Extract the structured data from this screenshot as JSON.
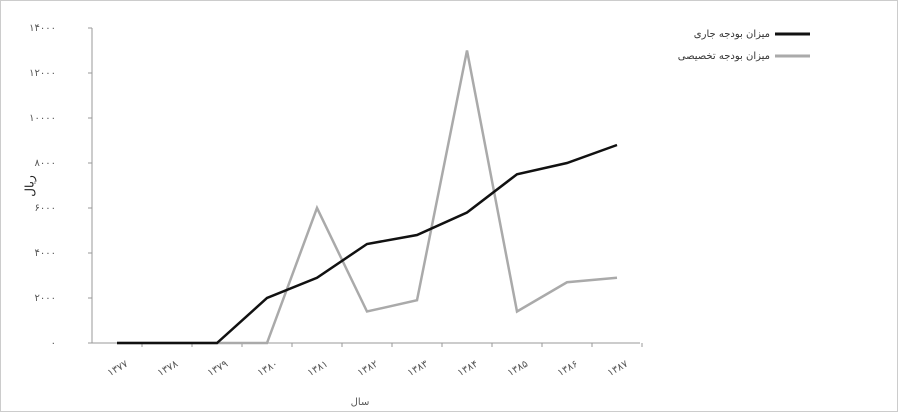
{
  "chart_data": {
    "type": "line",
    "y_label": "ریال",
    "x_label": "سال",
    "categories": [
      "۱۳۷۷",
      "۱۳۷۸",
      "۱۳۷۹",
      "۱۳۸۰",
      "۱۳۸۱",
      "۱۳۸۲",
      "۱۳۸۳",
      "۱۳۸۴",
      "۱۳۸۵",
      "۱۳۸۶",
      "۱۳۸۷"
    ],
    "series": [
      {
        "name": "میزان بودجه جاری",
        "color": "#111111",
        "values": [
          0,
          0,
          0,
          2000,
          2900,
          4400,
          4800,
          5800,
          7500,
          8000,
          8800
        ]
      },
      {
        "name": "میزان بودجه تخصیصی",
        "color": "#aaaaaa",
        "values": [
          0,
          0,
          0,
          0,
          6000,
          1400,
          1900,
          13000,
          1400,
          2700,
          2900
        ]
      }
    ],
    "ylim": [
      0,
      14000
    ],
    "yticks": [
      {
        "value": 0,
        "label": "۰"
      },
      {
        "value": 2000,
        "label": "۲۰۰۰"
      },
      {
        "value": 4000,
        "label": "۴۰۰۰"
      },
      {
        "value": 6000,
        "label": "۶۰۰۰"
      },
      {
        "value": 8000,
        "label": "۸۰۰۰"
      },
      {
        "value": 10000,
        "label": "۱۰۰۰۰"
      },
      {
        "value": 12000,
        "label": "۱۲۰۰۰"
      },
      {
        "value": 14000,
        "label": "۱۴۰۰۰"
      }
    ],
    "legend": "top-right"
  }
}
